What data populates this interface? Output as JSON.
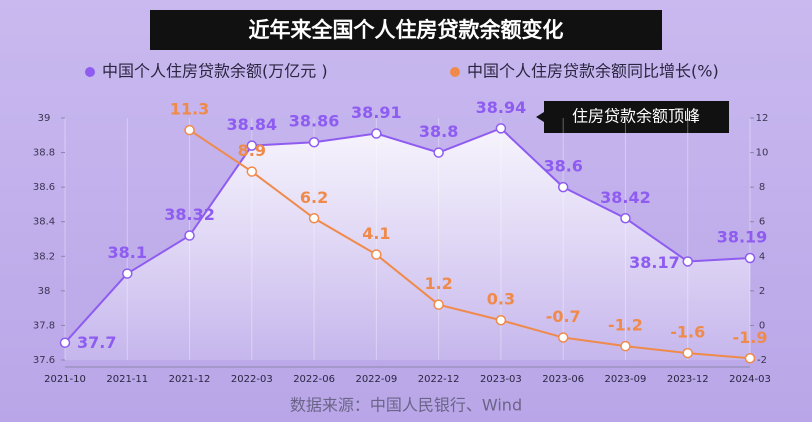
{
  "chart_data": {
    "type": "line",
    "title": "近年来全国个人住房贷款余额变化",
    "annotation": "住房贷款余额顶峰",
    "source": "数据来源：中国人民银行、Wind",
    "categories": [
      "2021-10",
      "2021-11",
      "2021-12",
      "2022-03",
      "2022-06",
      "2022-09",
      "2022-12",
      "2023-03",
      "2023-06",
      "2023-09",
      "2023-12",
      "2024-03"
    ],
    "series": [
      {
        "name": "中国个人住房贷款余额(万亿元 )",
        "color": "#8e5cf0",
        "values": [
          37.7,
          38.1,
          38.32,
          38.84,
          38.86,
          38.91,
          38.8,
          38.94,
          38.6,
          38.42,
          38.17,
          38.19
        ]
      },
      {
        "name": "中国个人住房贷款余额同比增长(%)",
        "color": "#f08a4b",
        "axis": "y2",
        "values": [
          null,
          null,
          11.3,
          8.9,
          6.2,
          4.1,
          1.2,
          0.3,
          -0.7,
          -1.2,
          -1.6,
          -1.9
        ]
      }
    ],
    "ylim": [
      37.6,
      39
    ],
    "yticks": [
      37.6,
      37.8,
      38,
      38.2,
      38.4,
      38.6,
      38.8,
      39
    ],
    "y2lim": [
      -2,
      12
    ],
    "y2ticks": [
      -2,
      0,
      2,
      4,
      6,
      8,
      10,
      12
    ],
    "grid": true
  }
}
